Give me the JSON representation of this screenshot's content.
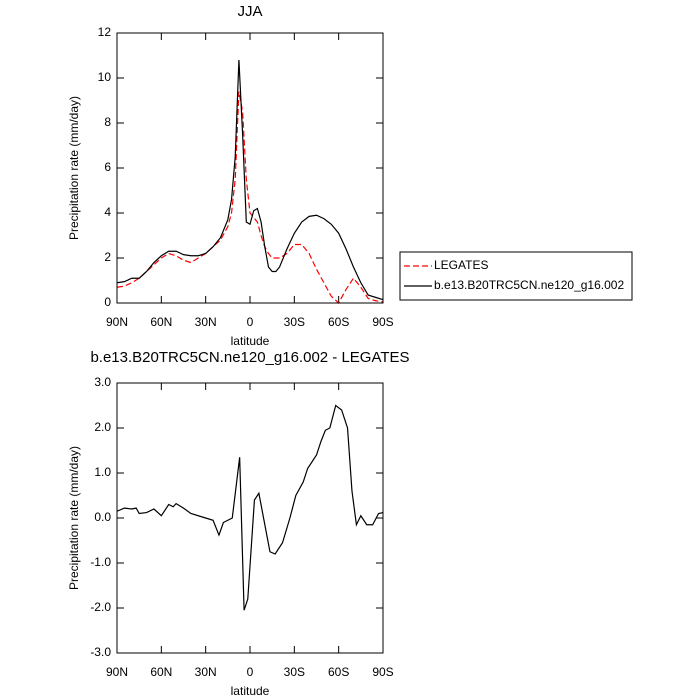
{
  "chart_data": [
    {
      "type": "line",
      "title": "JJA",
      "x_label": "latitude",
      "y_label": "Precipitation rate (mm/day)",
      "x": [
        90,
        85,
        80,
        75,
        70,
        65,
        60,
        55,
        50,
        45,
        40,
        35,
        30,
        25,
        20,
        15,
        12.5,
        10,
        7.5,
        5,
        2.5,
        0,
        -2.5,
        -5,
        -7.5,
        -10,
        -12.5,
        -15,
        -17.5,
        -20,
        -25,
        -30,
        -35,
        -40,
        -45,
        -50,
        -55,
        -60,
        -65,
        -70,
        -75,
        -80,
        -85,
        -90
      ],
      "series": [
        {
          "name": "LEGATES",
          "color": "#ff0000",
          "linestyle": "dashed",
          "values": [
            0.7,
            0.75,
            0.9,
            1.1,
            1.4,
            1.7,
            2.0,
            2.2,
            2.1,
            1.9,
            1.8,
            2.0,
            2.2,
            2.5,
            2.8,
            3.4,
            4.0,
            5.5,
            9.4,
            8.5,
            5.5,
            4.0,
            3.8,
            3.6,
            3.0,
            2.5,
            2.2,
            2.0,
            2.0,
            2.0,
            2.2,
            2.6,
            2.6,
            2.2,
            1.5,
            0.9,
            0.3,
            0.0,
            0.6,
            1.1,
            0.7,
            0.2,
            0.1,
            0.05
          ]
        },
        {
          "name": "b.e13.B20TRC5CN.ne120_g16.002",
          "color": "#000000",
          "linestyle": "solid",
          "values": [
            0.9,
            0.95,
            1.1,
            1.1,
            1.4,
            1.8,
            2.1,
            2.3,
            2.3,
            2.15,
            2.1,
            2.1,
            2.2,
            2.5,
            2.9,
            3.7,
            4.6,
            6.5,
            10.8,
            7.5,
            3.6,
            3.5,
            4.1,
            4.2,
            3.6,
            2.5,
            1.6,
            1.4,
            1.4,
            1.6,
            2.4,
            3.1,
            3.6,
            3.85,
            3.9,
            3.75,
            3.5,
            3.1,
            2.4,
            1.6,
            0.9,
            0.35,
            0.25,
            0.15
          ]
        }
      ],
      "xlim": [
        90,
        -90
      ],
      "xticks": [
        {
          "value": 90,
          "label": "90N"
        },
        {
          "value": 60,
          "label": "60N"
        },
        {
          "value": 30,
          "label": "30N"
        },
        0,
        {
          "value": -30,
          "label": "30S"
        },
        {
          "value": -60,
          "label": "60S"
        },
        {
          "value": -90,
          "label": "90S"
        }
      ],
      "ylim": [
        0,
        12
      ],
      "yticks": [
        0,
        2,
        4,
        6,
        8,
        10,
        12
      ],
      "legend": "right"
    },
    {
      "type": "line",
      "title": "b.e13.B20TRC5CN.ne120_g16.002 - LEGATES",
      "x_label": "latitude",
      "y_label": "Precipitation rate (mm/day)",
      "x": [
        90,
        85,
        80,
        77,
        75,
        70,
        65,
        60,
        55,
        52,
        50,
        45,
        40,
        35,
        30,
        25,
        21,
        18,
        12,
        7,
        4,
        1.5,
        -3,
        -6,
        -13.5,
        -17,
        -22,
        -27,
        -31,
        -36,
        -39,
        -45,
        -48,
        -51,
        -54,
        -58,
        -62,
        -66,
        -69,
        -72,
        -75,
        -79,
        -83,
        -87,
        -90
      ],
      "series": [
        {
          "color": "#000000",
          "linestyle": "solid",
          "values": [
            0.15,
            0.22,
            0.2,
            0.22,
            0.1,
            0.12,
            0.2,
            0.05,
            0.3,
            0.25,
            0.32,
            0.22,
            0.1,
            0.05,
            0.0,
            -0.05,
            -0.38,
            -0.1,
            0.0,
            1.35,
            -2.05,
            -1.8,
            0.4,
            0.55,
            -0.75,
            -0.8,
            -0.55,
            0.0,
            0.5,
            0.8,
            1.1,
            1.4,
            1.7,
            1.95,
            2.0,
            2.5,
            2.4,
            2.0,
            0.6,
            -0.15,
            0.05,
            -0.15,
            -0.15,
            0.1,
            0.12
          ]
        }
      ],
      "xlim": [
        90,
        -90
      ],
      "xticks": [
        {
          "value": 90,
          "label": "90N"
        },
        {
          "value": 60,
          "label": "60N"
        },
        {
          "value": 30,
          "label": "30N"
        },
        0,
        {
          "value": -30,
          "label": "30S"
        },
        {
          "value": -60,
          "label": "60S"
        },
        {
          "value": -90,
          "label": "90S"
        }
      ],
      "ylim": [
        -3,
        3
      ],
      "yticks": [
        {
          "value": -3,
          "label": "-3.0"
        },
        {
          "value": -2,
          "label": "-2.0"
        },
        {
          "value": -1,
          "label": "-1.0"
        },
        {
          "value": 0,
          "label": "0.0"
        },
        {
          "value": 1,
          "label": "1.0"
        },
        {
          "value": 2,
          "label": "2.0"
        },
        {
          "value": 3,
          "label": "3.0"
        }
      ]
    }
  ]
}
